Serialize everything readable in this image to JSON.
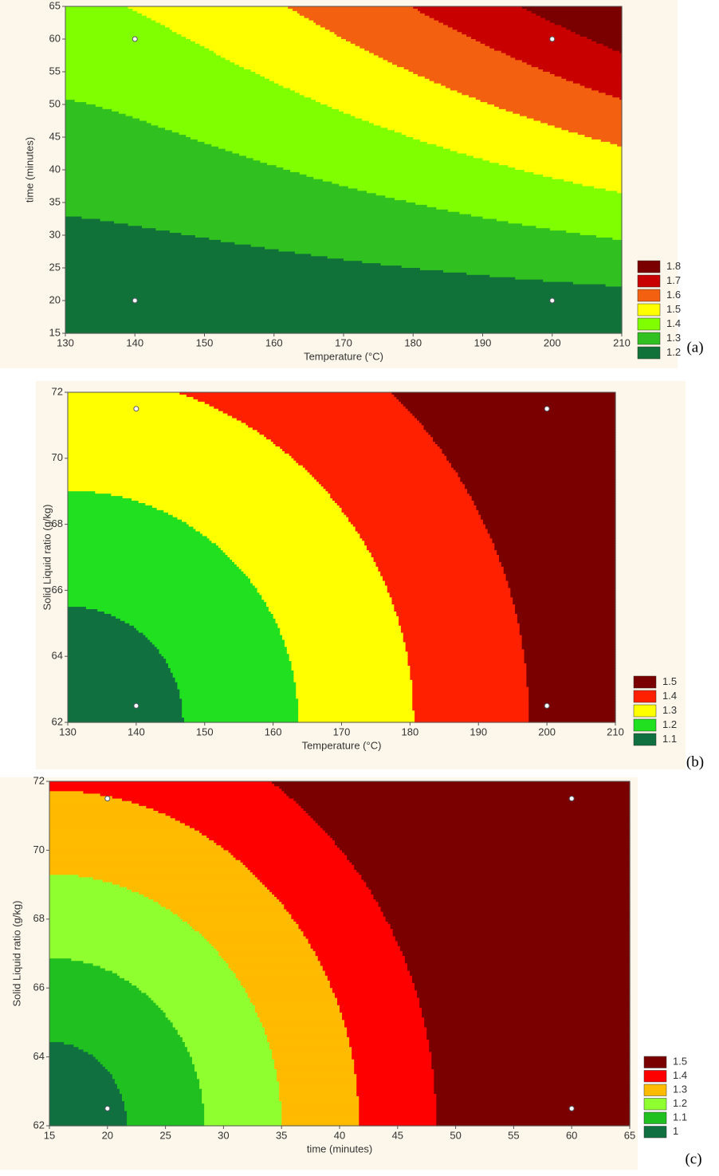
{
  "chart_data": [
    {
      "type": "contour",
      "x_label": "Temperature (°C)",
      "y_label": "time (minutes)",
      "panel_label": "(a)",
      "xlim": [
        130,
        210
      ],
      "ylim": [
        15,
        65
      ],
      "xticks": [
        130,
        140,
        150,
        160,
        170,
        180,
        190,
        200,
        210
      ],
      "yticks": [
        15,
        20,
        25,
        30,
        35,
        40,
        45,
        50,
        55,
        60,
        65
      ],
      "levels": [
        1.8,
        1.7,
        1.6,
        1.5,
        1.4,
        1.3,
        1.2
      ],
      "colors": [
        "#7a0000",
        "#c80000",
        "#f26010",
        "#ffff00",
        "#80ff00",
        "#30c020",
        "#107238"
      ],
      "points": {
        "x": [
          140,
          200,
          140,
          200
        ],
        "y": [
          60,
          60,
          20,
          20
        ]
      }
    },
    {
      "type": "contour",
      "x_label": "Temperature (°C)",
      "y_label": "Solid Liquid ratio (g/kg)",
      "panel_label": "(b)",
      "xlim": [
        130,
        210
      ],
      "ylim": [
        62,
        72
      ],
      "xticks": [
        130,
        140,
        150,
        160,
        170,
        180,
        190,
        200,
        210
      ],
      "yticks": [
        62,
        64,
        66,
        68,
        70,
        72
      ],
      "levels": [
        1.5,
        1.4,
        1.3,
        1.2,
        1.1
      ],
      "colors": [
        "#7a0000",
        "#ff2000",
        "#ffff00",
        "#20e020",
        "#107040"
      ],
      "points": {
        "x": [
          140,
          200,
          140,
          200
        ],
        "y": [
          71.5,
          71.5,
          62.5,
          62.5
        ]
      }
    },
    {
      "type": "contour",
      "x_label": "time (minutes)",
      "y_label": "Solid Liquid ratio (g/kg)",
      "panel_label": "(c)",
      "xlim": [
        15,
        65
      ],
      "ylim": [
        62,
        72
      ],
      "xticks": [
        15,
        20,
        25,
        30,
        35,
        40,
        45,
        50,
        55,
        60,
        65
      ],
      "yticks": [
        62,
        64,
        66,
        68,
        70,
        72
      ],
      "levels": [
        1.5,
        1.4,
        1.3,
        1.2,
        1.1,
        1
      ],
      "colors": [
        "#7a0000",
        "#ff0000",
        "#ffbb00",
        "#90ff30",
        "#20c020",
        "#107040"
      ],
      "points": {
        "x": [
          20,
          60,
          20,
          60
        ],
        "y": [
          71.5,
          71.5,
          62.5,
          62.5
        ]
      }
    }
  ]
}
